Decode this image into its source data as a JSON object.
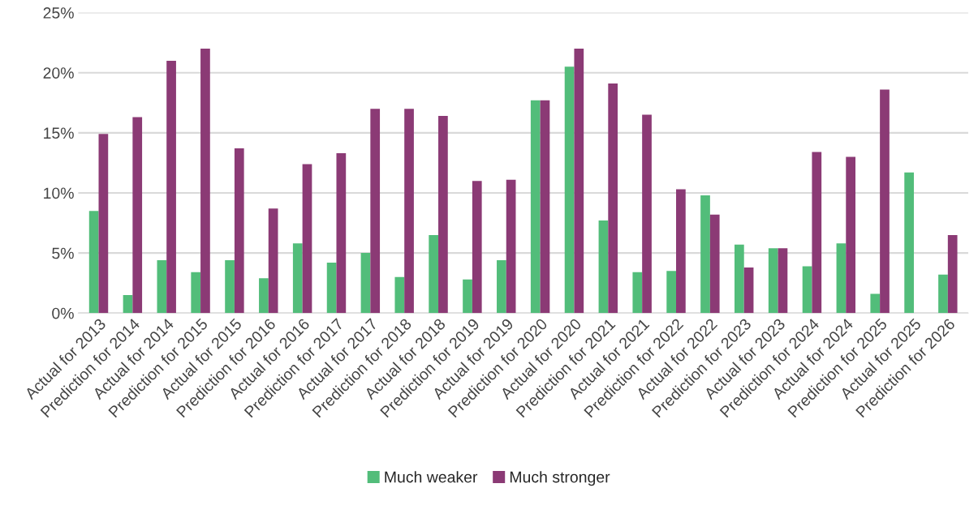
{
  "chart_data": {
    "type": "bar",
    "categories": [
      "Actual for 2013",
      "Prediction for 2014",
      "Actual for 2014",
      "Prediction for 2015",
      "Actual for 2015",
      "Prediction for 2016",
      "Actual for 2016",
      "Prediction for 2017",
      "Actual for 2017",
      "Prediction for 2018",
      "Actual for 2018",
      "Prediction for 2019",
      "Actual for 2019",
      "Prediction for 2020",
      "Actual for 2020",
      "Prediction for 2021",
      "Actual for 2021",
      "Prediction for 2022",
      "Actual for 2022",
      "Prediction for 2023",
      "Actual for 2023",
      "Prediction for 2024",
      "Actual for 2024",
      "Prediction for 2025",
      "Actual for 2025",
      "Prediction for 2026"
    ],
    "series": [
      {
        "name": "Much weaker",
        "color": "#52bd7a",
        "values": [
          8.5,
          1.5,
          4.4,
          3.4,
          4.4,
          2.9,
          5.8,
          4.2,
          5.0,
          3.0,
          6.5,
          2.8,
          4.4,
          17.7,
          20.5,
          7.7,
          3.4,
          3.5,
          9.8,
          5.7,
          5.4,
          3.9,
          5.8,
          1.6,
          11.7,
          3.2
        ]
      },
      {
        "name": "Much stronger",
        "color": "#8b3a75",
        "values": [
          14.9,
          16.3,
          21.0,
          22.0,
          13.7,
          8.7,
          12.4,
          13.3,
          17.0,
          17.0,
          16.4,
          11.0,
          11.1,
          17.7,
          22.0,
          19.1,
          16.5,
          10.3,
          8.2,
          3.8,
          5.4,
          13.4,
          13.0,
          18.6,
          0,
          6.5
        ]
      }
    ],
    "ylim": [
      0,
      25
    ],
    "yticks": [
      {
        "value": 0,
        "label": "0%"
      },
      {
        "value": 5,
        "label": "5%"
      },
      {
        "value": 10,
        "label": "10%"
      },
      {
        "value": 15,
        "label": "15%"
      },
      {
        "value": 20,
        "label": "20%"
      },
      {
        "value": 25,
        "label": "25%"
      }
    ],
    "grid": "y",
    "legend": "bottom"
  }
}
